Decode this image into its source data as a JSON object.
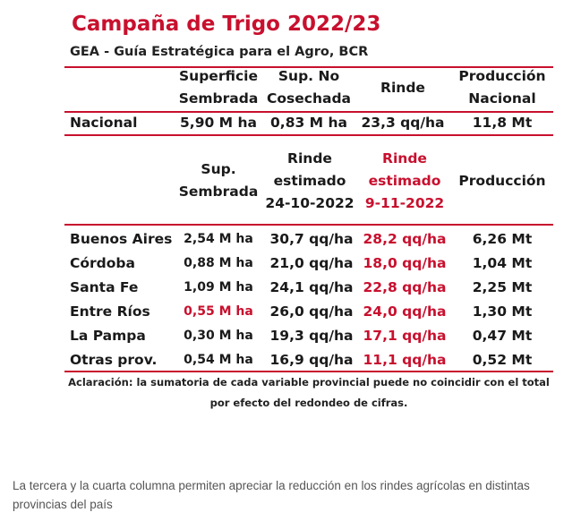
{
  "title": "Campaña de Trigo 2022/23",
  "subtitle": "GEA - Guía Estratégica para el Agro, BCR",
  "top_headers": {
    "col1_line1": "Superficie",
    "col1_line2": "Sembrada",
    "col2_line1": "Sup. No",
    "col2_line2": "Cosechada",
    "col3": "Rinde",
    "col4_line1": "Producción",
    "col4_line2": "Nacional"
  },
  "national_row": {
    "label": "Nacional",
    "superficie": "5,90 M ha",
    "sup_no_cosechada": "0,83 M ha",
    "rinde": "23,3 qq/ha",
    "produccion": "11,8 Mt"
  },
  "prov_headers": {
    "col1_line1": "Sup.",
    "col1_line2": "Sembrada",
    "col2_line1": "Rinde",
    "col2_line2": "estimado",
    "col2_line3": "24-10-2022",
    "col3_line1": "Rinde",
    "col3_line2": "estimado",
    "col3_line3": "9-11-2022",
    "col4": "Producción"
  },
  "provinces": [
    {
      "name": "Buenos Aires",
      "sup": "2,54 M ha",
      "rinde_prev": "30,7 qq/ha",
      "rinde_new": "28,2 qq/ha",
      "prod": "6,26 Mt"
    },
    {
      "name": "Córdoba",
      "sup": "0,88 M ha",
      "rinde_prev": "21,0 qq/ha",
      "rinde_new": "18,0 qq/ha",
      "prod": "1,04 Mt"
    },
    {
      "name": "Santa Fe",
      "sup": "1,09 M ha",
      "rinde_prev": "24,1 qq/ha",
      "rinde_new": "22,8 qq/ha",
      "prod": "2,25 Mt"
    },
    {
      "name": "Entre Ríos",
      "sup": "0,55 M ha",
      "rinde_prev": "26,0 qq/ha",
      "rinde_new": "24,0 qq/ha",
      "prod": "1,30 Mt"
    },
    {
      "name": "La Pampa",
      "sup": "0,30 M ha",
      "rinde_prev": "19,3 qq/ha",
      "rinde_new": "17,1 qq/ha",
      "prod": "0,47 Mt"
    },
    {
      "name": "Otras prov.",
      "sup": "0,54 M ha",
      "rinde_prev": "16,9 qq/ha",
      "rinde_new": "11,1 qq/ha",
      "prod": "0,52 Mt"
    }
  ],
  "note_line1": "Aclaración: la sumatoria de cada variable provincial puede no coincidir con el total",
  "note_line2": "por efecto del redondeo de cifras.",
  "caption": "La tercera y la cuarta columna permiten apreciar la reducción en los rindes agrícolas en distintas provincias del país",
  "colors": {
    "accent": "#c8102e",
    "text": "#1a1a1a",
    "caption": "#555555"
  }
}
